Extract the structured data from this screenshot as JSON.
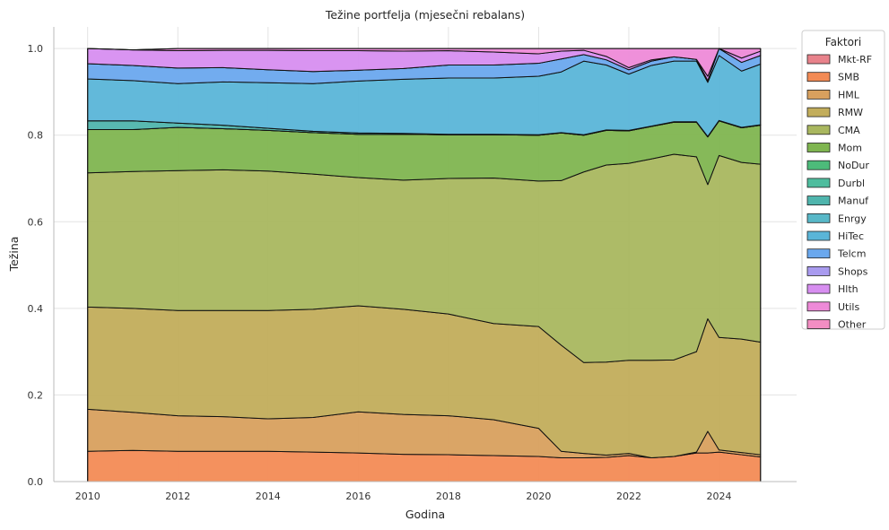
{
  "chart_data": {
    "type": "area",
    "title": "Težine portfelja (mjesečni rebalans)",
    "xlabel": "Godina",
    "ylabel": "Težina",
    "xlim": [
      2009.25,
      2025.72
    ],
    "ylim": [
      0,
      1.05
    ],
    "xticks": [
      "2010",
      "2012",
      "2014",
      "2016",
      "2018",
      "2020",
      "2022",
      "2024"
    ],
    "yticks": [
      "0.0",
      "0.2",
      "0.4",
      "0.6",
      "0.8",
      "1.0"
    ],
    "grid": true,
    "legend": {
      "title": "Faktori",
      "placement": "right-outside"
    },
    "x": [
      2010.0,
      2011.0,
      2012.0,
      2013.0,
      2014.0,
      2015.0,
      2016.0,
      2017.0,
      2018.0,
      2019.0,
      2020.0,
      2020.5,
      2021.0,
      2021.5,
      2022.0,
      2022.5,
      2023.0,
      2023.5,
      2023.75,
      2024.0,
      2024.5,
      2024.92
    ],
    "series": [
      {
        "name": "Mkt-RF",
        "color": "#e8828b",
        "values": [
          0,
          0,
          0,
          0,
          0,
          0,
          0,
          0,
          0,
          0,
          0,
          0,
          0,
          0,
          0,
          0,
          0,
          0,
          0,
          0,
          0,
          0
        ]
      },
      {
        "name": "SMB",
        "color": "#f38b55",
        "values": [
          0.07,
          0.072,
          0.07,
          0.07,
          0.07,
          0.068,
          0.066,
          0.063,
          0.062,
          0.06,
          0.058,
          0.055,
          0.055,
          0.056,
          0.06,
          0.055,
          0.058,
          0.066,
          0.066,
          0.068,
          0.062,
          0.057
        ]
      },
      {
        "name": "HML",
        "color": "#d8a05e",
        "values": [
          0.097,
          0.088,
          0.082,
          0.08,
          0.075,
          0.08,
          0.095,
          0.092,
          0.09,
          0.083,
          0.065,
          0.015,
          0.01,
          0.005,
          0.005,
          0.0,
          0.0,
          0.002,
          0.05,
          0.005,
          0.005,
          0.005
        ]
      },
      {
        "name": "RMW",
        "color": "#c2ad5b",
        "values": [
          0.236,
          0.24,
          0.243,
          0.245,
          0.25,
          0.25,
          0.245,
          0.243,
          0.235,
          0.222,
          0.235,
          0.245,
          0.21,
          0.215,
          0.215,
          0.225,
          0.223,
          0.232,
          0.26,
          0.26,
          0.262,
          0.26
        ]
      },
      {
        "name": "CMA",
        "color": "#a9b75f",
        "values": [
          0.31,
          0.316,
          0.323,
          0.325,
          0.322,
          0.312,
          0.296,
          0.298,
          0.313,
          0.336,
          0.336,
          0.38,
          0.44,
          0.455,
          0.455,
          0.465,
          0.475,
          0.45,
          0.31,
          0.42,
          0.408,
          0.411
        ]
      },
      {
        "name": "Mom",
        "color": "#7fb550",
        "values": [
          0.1,
          0.097,
          0.1,
          0.095,
          0.094,
          0.096,
          0.1,
          0.106,
          0.101,
          0.1,
          0.106,
          0.11,
          0.085,
          0.08,
          0.075,
          0.075,
          0.074,
          0.08,
          0.11,
          0.08,
          0.08,
          0.09
        ]
      },
      {
        "name": "NoDur",
        "color": "#4dbb7a",
        "values": [
          0,
          0,
          0,
          0,
          0,
          0,
          0,
          0,
          0,
          0,
          0,
          0,
          0,
          0,
          0,
          0,
          0,
          0,
          0,
          0,
          0,
          0
        ]
      },
      {
        "name": "Durbl",
        "color": "#4ebd9e",
        "values": [
          0,
          0,
          0,
          0,
          0,
          0,
          0,
          0,
          0,
          0,
          0,
          0,
          0,
          0,
          0,
          0,
          0,
          0,
          0,
          0,
          0,
          0
        ]
      },
      {
        "name": "Manuf",
        "color": "#4fb5ad",
        "values": [
          0.02,
          0.02,
          0.01,
          0.008,
          0.005,
          0.003,
          0.003,
          0.002,
          0.001,
          0.001,
          0.001,
          0.001,
          0.001,
          0.001,
          0.001,
          0.001,
          0.001,
          0.001,
          0.001,
          0.001,
          0.001,
          0.001
        ]
      },
      {
        "name": "Enrgy",
        "color": "#58b8c8",
        "values": [
          0,
          0,
          0,
          0,
          0,
          0,
          0,
          0,
          0,
          0,
          0,
          0,
          0,
          0,
          0,
          0,
          0,
          0,
          0,
          0,
          0,
          0
        ]
      },
      {
        "name": "HiTec",
        "color": "#5ab5d8",
        "values": [
          0.097,
          0.093,
          0.091,
          0.1,
          0.105,
          0.11,
          0.12,
          0.125,
          0.13,
          0.13,
          0.135,
          0.14,
          0.17,
          0.15,
          0.13,
          0.14,
          0.14,
          0.14,
          0.125,
          0.15,
          0.13,
          0.14
        ]
      },
      {
        "name": "Telcm",
        "color": "#6aa8ee",
        "values": [
          0.035,
          0.035,
          0.036,
          0.033,
          0.03,
          0.028,
          0.025,
          0.025,
          0.03,
          0.03,
          0.03,
          0.03,
          0.015,
          0.012,
          0.01,
          0.01,
          0.01,
          0.004,
          0.004,
          0.02,
          0.02,
          0.02
        ]
      },
      {
        "name": "Shops",
        "color": "#a99bef",
        "values": [
          0,
          0,
          0,
          0,
          0,
          0,
          0,
          0,
          0,
          0,
          0,
          0,
          0,
          0,
          0,
          0,
          0,
          0,
          0,
          0,
          0,
          0
        ]
      },
      {
        "name": "Hlth",
        "color": "#d78ef0",
        "values": [
          0.035,
          0.036,
          0.04,
          0.04,
          0.045,
          0.048,
          0.045,
          0.04,
          0.033,
          0.03,
          0.022,
          0.018,
          0.01,
          0.008,
          0.005,
          0.003,
          0.0,
          0.0,
          0.01,
          0.0,
          0.01,
          0.01
        ]
      },
      {
        "name": "Utils",
        "color": "#ee8ad8",
        "values": [
          0,
          0,
          0.005,
          0.004,
          0.004,
          0.005,
          0.005,
          0.006,
          0.005,
          0.008,
          0.012,
          0.006,
          0.004,
          0.018,
          0.044,
          0.026,
          0.019,
          0.025,
          0.064,
          0.026,
          0.052,
          0.006
        ]
      },
      {
        "name": "Other",
        "color": "#f38ec3",
        "values": [
          0,
          0,
          0,
          0,
          0,
          0,
          0,
          0,
          0,
          0,
          0,
          0,
          0,
          0,
          0,
          0,
          0,
          0,
          0,
          0,
          0,
          0
        ]
      }
    ]
  }
}
